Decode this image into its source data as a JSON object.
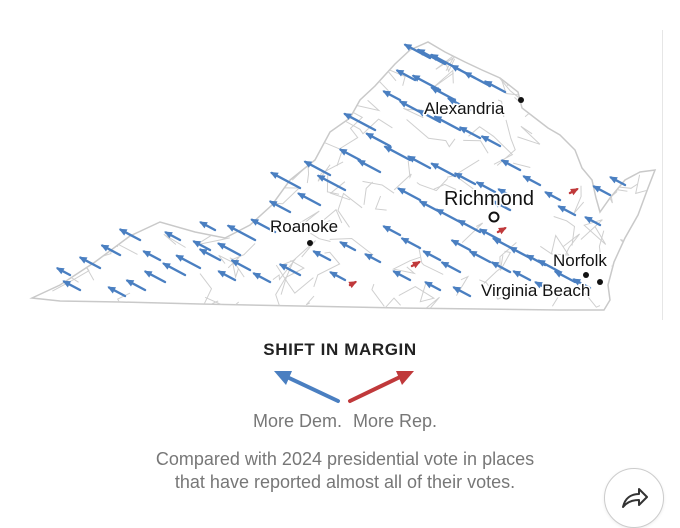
{
  "map": {
    "state": "Virginia",
    "cities": [
      {
        "name": "Alexandria",
        "marker": "dot"
      },
      {
        "name": "Richmond",
        "marker": "ring"
      },
      {
        "name": "Roanoke",
        "marker": "dot"
      },
      {
        "name": "Norfolk",
        "marker": "dot"
      },
      {
        "name": "Virginia Beach",
        "marker": "dot"
      }
    ],
    "colors": {
      "dem": "#4a7fc1",
      "rep": "#c0393b",
      "county_borders": "#cfcfcf"
    }
  },
  "legend": {
    "title": "SHIFT IN MARGIN",
    "dem_label": "More Dem.",
    "rep_label": "More Rep."
  },
  "note": {
    "line1": "Compared with 2024 presidential vote in places",
    "line2": "that have reported almost all of their votes."
  },
  "share": {
    "icon": "share-arrow-icon"
  }
}
